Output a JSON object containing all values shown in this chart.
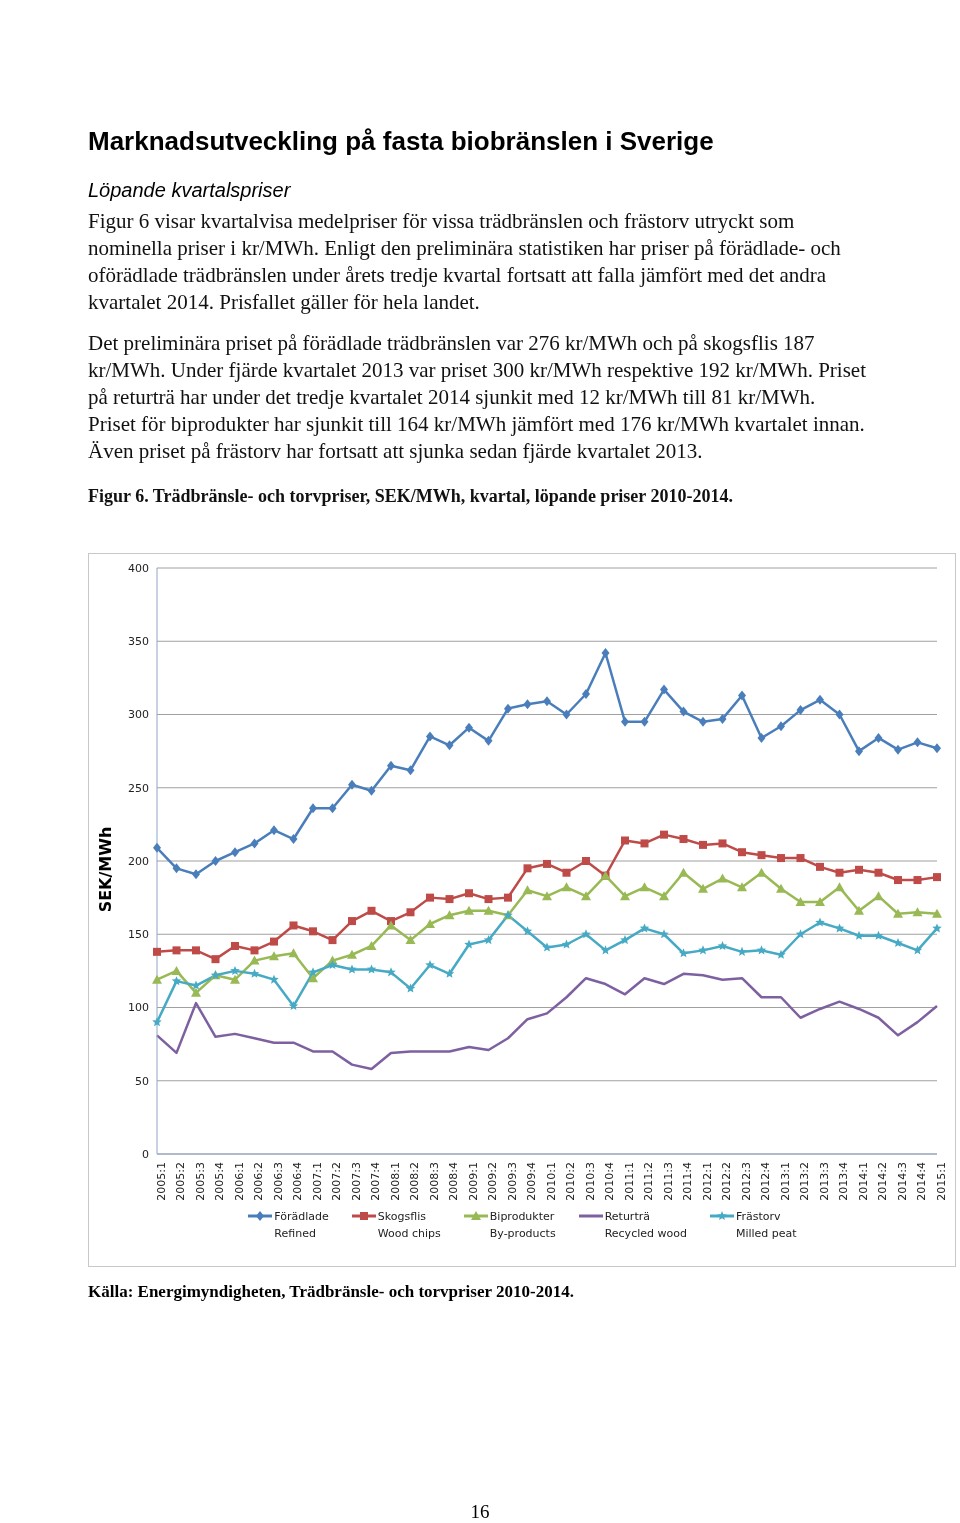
{
  "chart_data": {
    "type": "line",
    "title": "Marknadsutveckling på fasta biobränslen i Sverige",
    "subtitle": "Löpande kvartalspriser",
    "annotations": [
      "Figur 6 visar kvartalvisa medelpriser för vissa trädbränslen och frästorv utryckt som nominella priser i kr/MWh. Enligt den preliminära statistiken har priser på förädlade- och oförädlade trädbränslen under årets tredje kvartal fortsatt att falla jämfört med det andra kvartalet 2014. Prisfallet gäller för hela landet.",
      "Det preliminära priset på förädlade trädbränslen var 276 kr/MWh och på skogsflis 187 kr/MWh. Under fjärde kvartalet 2013 var priset 300 kr/MWh respektive 192 kr/MWh. Priset på returträ har under det tredje kvartalet 2014 sjunkit med 12 kr/MWh till 81 kr/MWh. Priset för biprodukter har sjunkit till 164 kr/MWh jämfört med 176 kr/MWh kvartalet innan. Även priset på frästorv har fortsatt att sjunka sedan fjärde kvartalet 2013.",
      "Figur 6. Trädbränsle- och torvpriser, SEK/MWh, kvartal, löpande priser 2010-2014.",
      "Källa: Energimyndigheten, Trädbränsle- och torvpriser 2010-2014.",
      "16"
    ],
    "ylabel": "SEK/MWh",
    "categories": [
      "2005:1",
      "2005:2",
      "2005:3",
      "2005:4",
      "2006:1",
      "2006:2",
      "2006:3",
      "2006:4",
      "2007:1",
      "2007:2",
      "2007:3",
      "2007:4",
      "2008:1",
      "2008:2",
      "2008:3",
      "2008:4",
      "2009:1",
      "2009:2",
      "2009:3",
      "2009:4",
      "2010:1",
      "2010:2",
      "2010:3",
      "2010:4",
      "2011:1",
      "2011:2",
      "2011:3",
      "2011:4",
      "2012:1",
      "2012:2",
      "2012:3",
      "2012:4",
      "2013:1",
      "2013:2",
      "2013:3",
      "2013:4",
      "2014:1",
      "2014:2",
      "2014:3",
      "2014:4",
      "2015:1"
    ],
    "series": [
      {
        "name": "Förädlade\nRefined",
        "color": "#4a7ebb",
        "marker": "diamond",
        "values": [
          209,
          195,
          191,
          200,
          206,
          212,
          221,
          215,
          236,
          236,
          252,
          248,
          265,
          262,
          285,
          279,
          291,
          282,
          304,
          307,
          309,
          300,
          314,
          342,
          295,
          295,
          317,
          302,
          295,
          297,
          313,
          284,
          292,
          303,
          310,
          300,
          275,
          284,
          276,
          281,
          277
        ]
      },
      {
        "name": "Skogsflis\nWood chips",
        "color": "#be4b48",
        "marker": "square",
        "values": [
          138,
          139,
          139,
          133,
          142,
          139,
          145,
          156,
          152,
          146,
          159,
          166,
          159,
          165,
          175,
          174,
          178,
          174,
          175,
          195,
          198,
          192,
          200,
          190,
          214,
          212,
          218,
          215,
          211,
          212,
          206,
          204,
          202,
          202,
          196,
          192,
          194,
          192,
          187,
          187,
          189
        ]
      },
      {
        "name": "Biprodukter\nBy-products",
        "color": "#98b954",
        "marker": "triangle",
        "values": [
          119,
          125,
          110,
          122,
          119,
          132,
          135,
          137,
          120,
          132,
          136,
          142,
          156,
          146,
          157,
          163,
          166,
          166,
          163,
          180,
          176,
          182,
          176,
          190,
          176,
          182,
          176,
          192,
          181,
          188,
          182,
          192,
          181,
          172,
          172,
          182,
          166,
          176,
          164,
          165,
          164
        ]
      },
      {
        "name": "Returträ\nRecycled wood",
        "color": "#7d60a0",
        "marker": "none",
        "values": [
          81,
          69,
          103,
          80,
          82,
          79,
          76,
          76,
          70,
          70,
          61,
          58,
          69,
          70,
          70,
          70,
          73,
          71,
          79,
          92,
          96,
          107,
          120,
          116,
          109,
          120,
          116,
          123,
          122,
          119,
          120,
          107,
          107,
          93,
          99,
          104,
          99,
          93,
          81,
          90,
          101
        ]
      },
      {
        "name": "Frästorv\nMilled peat",
        "color": "#46aac5",
        "marker": "star",
        "values": [
          90,
          118,
          115,
          122,
          125,
          123,
          119,
          101,
          124,
          129,
          126,
          126,
          124,
          113,
          129,
          123,
          143,
          146,
          163,
          152,
          141,
          143,
          150,
          139,
          146,
          154,
          150,
          137,
          139,
          142,
          138,
          139,
          136,
          150,
          158,
          154,
          149,
          149,
          144,
          139,
          154
        ]
      }
    ],
    "ylim": [
      0,
      400
    ],
    "yticks": [
      0,
      50,
      100,
      150,
      200,
      250,
      300,
      350,
      400
    ],
    "grid": "y",
    "legend": "bottom",
    "line_style": "solid"
  }
}
